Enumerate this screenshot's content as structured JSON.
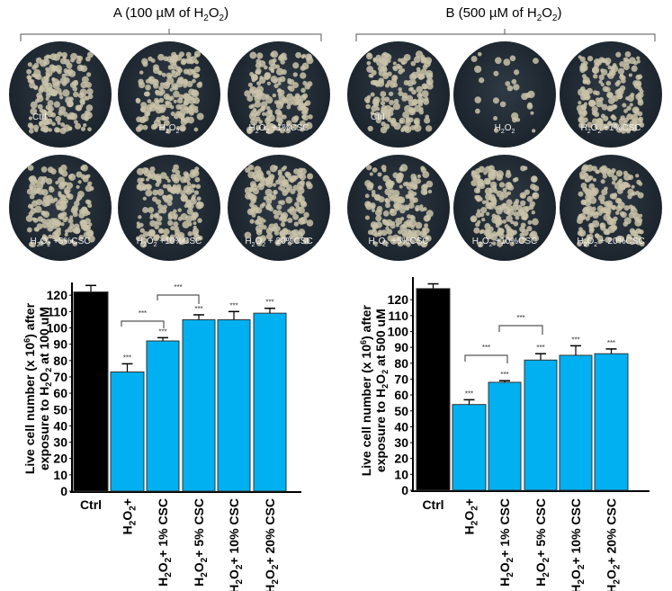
{
  "panels": {
    "A": {
      "title_prefix": "A (100 µM of H",
      "title_suffix": ")"
    },
    "B": {
      "title_prefix": "B (500 µM of H",
      "title_suffix": ")"
    }
  },
  "plates": {
    "A": [
      {
        "label": "Ctrl"
      },
      {
        "label": "H2O2"
      },
      {
        "label": "H2O2 +1%CSC"
      },
      {
        "label": "H2O2 +5%CSC"
      },
      {
        "label": "H2O2 +10%CSC"
      },
      {
        "label": "H2O2 + 20%CSC"
      }
    ],
    "B": [
      {
        "label": "Ctrl"
      },
      {
        "label": "H2O2"
      },
      {
        "label": "H2O2 +1%CSC"
      },
      {
        "label": "H2O2 +5%CSC"
      },
      {
        "label": "H2O2 +10%CSC"
      },
      {
        "label": "H2O2 + 20%CSC"
      }
    ]
  },
  "colors": {
    "control_bar": "#000000",
    "treatment_bar": "#00b0f0",
    "plate_bg": "#1f2831",
    "colony": "#c9c2a8"
  },
  "chart_data": [
    {
      "type": "bar",
      "title": "",
      "xlabel": "",
      "ylabel": "Live cell number (x 10^6) after exposure to H2O2 at 100 uM",
      "categories": [
        "Ctrl",
        "H2O2+",
        "H2O2+ 1% CSC",
        "H2O2+ 5% CSC",
        "H2O2+ 10% CSC",
        "H2O2+ 20% CSC"
      ],
      "values": [
        122,
        73,
        92,
        105,
        105,
        109
      ],
      "errors": [
        4,
        5,
        2,
        3,
        5,
        3
      ],
      "significance": [
        "",
        "***",
        "***",
        "***",
        "***",
        "***"
      ],
      "brackets": [
        {
          "from": "H2O2+",
          "to": "H2O2+ 1% CSC",
          "label": "***"
        },
        {
          "from": "H2O2+ 1% CSC",
          "to": "H2O2+ 5% CSC",
          "label": "***"
        }
      ],
      "yticks": [
        0,
        10,
        20,
        30,
        40,
        50,
        60,
        70,
        80,
        90,
        100,
        110,
        120
      ],
      "ylim": [
        0,
        125
      ],
      "grid": false,
      "legend": "none"
    },
    {
      "type": "bar",
      "title": "",
      "xlabel": "",
      "ylabel": "Live cell number (x 10^6) after exposure to H2O2 at 500 uM",
      "categories": [
        "Ctrl",
        "H2O2+",
        "H2O2+ 1% CSC",
        "H2O2+ 5% CSC",
        "H2O2+ 10% CSC",
        "H2O2+ 20% CSC"
      ],
      "values": [
        127,
        54,
        68,
        82,
        85,
        86
      ],
      "errors": [
        3,
        3,
        1,
        4,
        6,
        3
      ],
      "significance": [
        "",
        "***",
        "***",
        "***",
        "***",
        "***"
      ],
      "brackets": [
        {
          "from": "H2O2+",
          "to": "H2O2+ 1% CSC",
          "label": "***"
        },
        {
          "from": "H2O2+ 1% CSC",
          "to": "H2O2+ 5% CSC",
          "label": "***"
        }
      ],
      "yticks": [
        0,
        10,
        20,
        30,
        40,
        50,
        60,
        70,
        80,
        90,
        100,
        110,
        120
      ],
      "ylim": [
        0,
        130
      ],
      "grid": false,
      "legend": "none"
    }
  ],
  "axis_text": {
    "ylabel_line1": "Live cell number (x 10",
    "ylabel_sup": "6",
    "ylabel_line1_end": ") after",
    "ylabel_line2_start": "exposure to H",
    "ylabel_line2_A_end": " at 100 uM",
    "ylabel_line2_B_end": " at 500 uM",
    "sig": "***",
    "h2o2_H": "H",
    "h2o2_O": "O",
    "sub2": "2"
  }
}
